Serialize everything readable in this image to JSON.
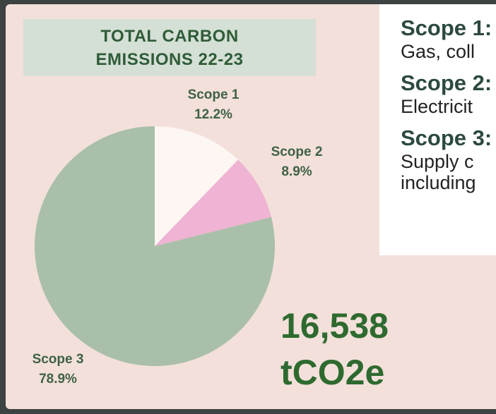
{
  "chart_data": {
    "type": "pie",
    "title": "TOTAL CARBON EMISSIONS 22-23",
    "categories": [
      "Scope 1",
      "Scope 2",
      "Scope 3"
    ],
    "values": [
      12.2,
      8.9,
      78.9
    ],
    "value_labels": [
      "12.2%",
      "8.9%",
      "78.9%"
    ],
    "colors": [
      "#fdf6f3",
      "#efb3d3",
      "#a9bfaa"
    ],
    "annotations": [
      "16,538",
      "tCO2e"
    ],
    "notes": [
      {
        "heading": "Scope 1:",
        "text": "Gas, coll"
      },
      {
        "heading": "Scope 2:",
        "text": "Electricit"
      },
      {
        "heading": "Scope 3:",
        "text": "Supply c including"
      }
    ]
  }
}
